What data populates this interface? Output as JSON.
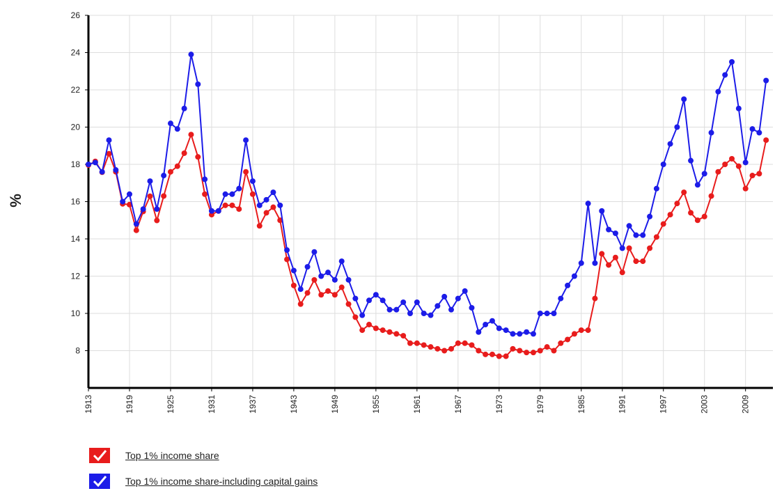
{
  "chart_data": {
    "type": "line",
    "ylabel": "%",
    "x": [
      1913,
      1914,
      1915,
      1916,
      1917,
      1918,
      1919,
      1920,
      1921,
      1922,
      1923,
      1924,
      1925,
      1926,
      1927,
      1928,
      1929,
      1930,
      1931,
      1932,
      1933,
      1934,
      1935,
      1936,
      1937,
      1938,
      1939,
      1940,
      1941,
      1942,
      1943,
      1944,
      1945,
      1946,
      1947,
      1948,
      1949,
      1950,
      1951,
      1952,
      1953,
      1954,
      1955,
      1956,
      1957,
      1958,
      1959,
      1960,
      1961,
      1962,
      1963,
      1964,
      1965,
      1966,
      1967,
      1968,
      1969,
      1970,
      1971,
      1972,
      1973,
      1974,
      1975,
      1976,
      1977,
      1978,
      1979,
      1980,
      1981,
      1982,
      1983,
      1984,
      1985,
      1986,
      1987,
      1988,
      1989,
      1990,
      1991,
      1992,
      1993,
      1994,
      1995,
      1996,
      1997,
      1998,
      1999,
      2000,
      2001,
      2002,
      2003,
      2004,
      2005,
      2006,
      2007,
      2008,
      2009,
      2010,
      2011,
      2012
    ],
    "series": [
      {
        "name": "Top 1% income share",
        "color": "#e81c1c",
        "values": [
          17.96,
          18.16,
          17.58,
          18.57,
          17.6,
          15.88,
          15.84,
          14.46,
          15.47,
          16.29,
          14.99,
          16.3,
          17.6,
          17.9,
          18.6,
          19.6,
          18.4,
          16.4,
          15.3,
          15.5,
          15.8,
          15.8,
          15.6,
          17.6,
          16.4,
          14.7,
          15.4,
          15.7,
          15.0,
          12.9,
          11.5,
          10.5,
          11.1,
          11.8,
          11.0,
          11.2,
          11.0,
          11.4,
          10.5,
          9.8,
          9.1,
          9.4,
          9.2,
          9.1,
          9.0,
          8.9,
          8.8,
          8.4,
          8.4,
          8.3,
          8.2,
          8.1,
          8.0,
          8.1,
          8.4,
          8.4,
          8.3,
          8.0,
          7.8,
          7.8,
          7.7,
          7.7,
          8.1,
          8.0,
          7.9,
          7.9,
          8.0,
          8.2,
          8.0,
          8.4,
          8.6,
          8.9,
          9.1,
          9.1,
          10.8,
          13.2,
          12.6,
          13.0,
          12.2,
          13.5,
          12.8,
          12.8,
          13.5,
          14.1,
          14.8,
          15.3,
          15.9,
          16.5,
          15.4,
          15.0,
          15.2,
          16.3,
          17.6,
          18.0,
          18.3,
          17.9,
          16.7,
          17.4,
          17.5,
          19.3
        ]
      },
      {
        "name": "Top 1% income share-including capital gains",
        "color": "#1c1ce8",
        "values": [
          18,
          18.1,
          17.6,
          19.3,
          17.7,
          16.0,
          16.4,
          14.8,
          15.6,
          17.1,
          15.6,
          17.4,
          20.2,
          19.9,
          21.0,
          23.9,
          22.3,
          17.2,
          15.5,
          15.5,
          16.4,
          16.4,
          16.7,
          19.3,
          17.1,
          15.8,
          16.1,
          16.5,
          15.8,
          13.4,
          12.3,
          11.3,
          12.5,
          13.3,
          12.0,
          12.2,
          11.8,
          12.8,
          11.8,
          10.8,
          9.9,
          10.7,
          11.0,
          10.7,
          10.2,
          10.2,
          10.6,
          10.0,
          10.6,
          10.0,
          9.9,
          10.4,
          10.9,
          10.2,
          10.8,
          11.2,
          10.3,
          9.0,
          9.4,
          9.6,
          9.2,
          9.1,
          8.9,
          8.9,
          9.0,
          8.9,
          10.0,
          10.0,
          10.0,
          10.8,
          11.5,
          12.0,
          12.7,
          15.9,
          12.7,
          15.5,
          14.5,
          14.3,
          13.5,
          14.7,
          14.2,
          14.2,
          15.2,
          16.7,
          18.0,
          19.1,
          20.0,
          21.5,
          18.2,
          16.9,
          17.5,
          19.7,
          21.9,
          22.8,
          23.5,
          21.0,
          18.1,
          19.9,
          19.7,
          22.5
        ]
      }
    ],
    "xlim": [
      1913,
      2013
    ],
    "xticks": [
      1913,
      1919,
      1925,
      1931,
      1937,
      1943,
      1949,
      1955,
      1961,
      1967,
      1973,
      1979,
      1985,
      1991,
      1997,
      2003,
      2009
    ],
    "ylim": [
      6,
      26
    ],
    "yticks": [
      8,
      10,
      12,
      14,
      16,
      18,
      20,
      22,
      24,
      26
    ],
    "grid": true
  }
}
